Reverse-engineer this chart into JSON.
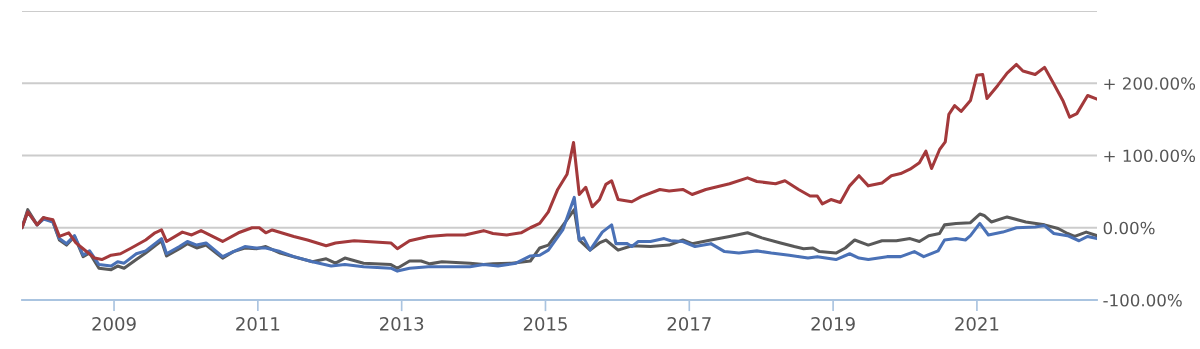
{
  "chart_data": {
    "type": "line",
    "series": [
      {
        "color": "#a3393b",
        "x": [
          2007.72,
          2007.8,
          2007.93,
          2008.02,
          2008.15,
          2008.24,
          2008.37,
          2008.47,
          2008.57,
          2008.73,
          2008.83,
          2008.96,
          2009.09,
          2009.24,
          2009.44,
          2009.57,
          2009.66,
          2009.73,
          2009.95,
          2010.08,
          2010.21,
          2010.51,
          2010.73,
          2010.92,
          2011.02,
          2011.11,
          2011.2,
          2011.5,
          2011.69,
          2011.95,
          2012.08,
          2012.34,
          2012.85,
          2012.94,
          2013.11,
          2013.37,
          2013.63,
          2013.88,
          2014.14,
          2014.27,
          2014.46,
          2014.66,
          2014.79,
          2014.92,
          2015.04,
          2015.17,
          2015.3,
          2015.39,
          2015.47,
          2015.56,
          2015.65,
          2015.75,
          2015.84,
          2015.92,
          2016.01,
          2016.2,
          2016.33,
          2016.59,
          2016.72,
          2016.91,
          2017.04,
          2017.23,
          2017.56,
          2017.81,
          2017.94,
          2018.2,
          2018.33,
          2018.52,
          2018.68,
          2018.78,
          2018.85,
          2018.97,
          2019.1,
          2019.23,
          2019.36,
          2019.49,
          2019.68,
          2019.81,
          2019.94,
          2020.07,
          2020.2,
          2020.29,
          2020.37,
          2020.48,
          2020.56,
          2020.61,
          2020.69,
          2020.78,
          2020.91,
          2021.0,
          2021.08,
          2021.14,
          2021.29,
          2021.42,
          2021.55,
          2021.64,
          2021.81,
          2021.94,
          2022.07,
          2022.2,
          2022.29,
          2022.39,
          2022.54,
          2022.67
        ],
        "values": [
          0,
          22,
          4,
          14,
          11,
          -12,
          -7,
          -21,
          -29,
          -42,
          -44,
          -38,
          -36,
          -28,
          -17,
          -7,
          -3,
          -19,
          -6,
          -10,
          -4,
          -19,
          -7,
          0,
          0,
          -7,
          -3,
          -12,
          -17,
          -25,
          -21,
          -18,
          -21,
          -29,
          -18,
          -12,
          -10,
          -10,
          -4,
          -8,
          -10,
          -7,
          0,
          6,
          22,
          53,
          74,
          118,
          46,
          56,
          29,
          39,
          60,
          65,
          39,
          36,
          43,
          53,
          51,
          53,
          46,
          53,
          61,
          69,
          64,
          61,
          65,
          53,
          44,
          44,
          33,
          39,
          35,
          58,
          72,
          58,
          62,
          72,
          75,
          81,
          90,
          106,
          82,
          108,
          119,
          157,
          169,
          161,
          176,
          211,
          212,
          179,
          197,
          214,
          226,
          217,
          212,
          222,
          199,
          175,
          153,
          158,
          183,
          178
        ]
      },
      {
        "color": "#4a71b6",
        "x": [
          2007.72,
          2007.8,
          2007.93,
          2008.02,
          2008.15,
          2008.24,
          2008.34,
          2008.45,
          2008.57,
          2008.66,
          2008.79,
          2008.96,
          2009.05,
          2009.14,
          2009.31,
          2009.44,
          2009.57,
          2009.66,
          2009.73,
          2009.91,
          2010.02,
          2010.15,
          2010.28,
          2010.51,
          2010.66,
          2010.82,
          2010.98,
          2011.11,
          2011.31,
          2011.5,
          2011.76,
          2012.02,
          2012.21,
          2012.47,
          2012.85,
          2012.94,
          2013.11,
          2013.37,
          2013.63,
          2013.95,
          2014.14,
          2014.34,
          2014.59,
          2014.79,
          2014.92,
          2015.04,
          2015.24,
          2015.4,
          2015.47,
          2015.53,
          2015.62,
          2015.79,
          2015.92,
          2015.98,
          2016.14,
          2016.2,
          2016.29,
          2016.46,
          2016.65,
          2016.74,
          2016.91,
          2017.08,
          2017.3,
          2017.49,
          2017.69,
          2017.94,
          2018.14,
          2018.39,
          2018.65,
          2018.78,
          2019.04,
          2019.23,
          2019.36,
          2019.49,
          2019.75,
          2019.94,
          2020.13,
          2020.26,
          2020.46,
          2020.55,
          2020.71,
          2020.84,
          2020.91,
          2021.04,
          2021.16,
          2021.36,
          2021.55,
          2021.81,
          2021.94,
          2022.07,
          2022.26,
          2022.42,
          2022.54,
          2022.67
        ],
        "values": [
          0,
          22,
          4,
          12,
          8,
          -15,
          -22,
          -11,
          -38,
          -32,
          -51,
          -53,
          -47,
          -49,
          -36,
          -32,
          -22,
          -15,
          -36,
          -26,
          -19,
          -24,
          -21,
          -40,
          -33,
          -26,
          -28,
          -28,
          -33,
          -40,
          -47,
          -53,
          -51,
          -54,
          -56,
          -60,
          -56,
          -54,
          -54,
          -54,
          -51,
          -53,
          -49,
          -39,
          -38,
          -31,
          -3,
          42,
          -17,
          -14,
          -31,
          -6,
          4,
          -22,
          -22,
          -26,
          -19,
          -19,
          -15,
          -18,
          -19,
          -26,
          -22,
          -33,
          -35,
          -32,
          -35,
          -38,
          -42,
          -40,
          -44,
          -36,
          -42,
          -44,
          -40,
          -40,
          -33,
          -40,
          -32,
          -17,
          -15,
          -17,
          -11,
          6,
          -10,
          -6,
          0,
          1,
          3,
          -8,
          -11,
          -18,
          -12,
          -15
        ]
      },
      {
        "color": "#595959",
        "x": [
          2007.72,
          2007.8,
          2007.93,
          2008.02,
          2008.15,
          2008.24,
          2008.34,
          2008.45,
          2008.57,
          2008.66,
          2008.79,
          2008.96,
          2009.05,
          2009.14,
          2009.31,
          2009.44,
          2009.57,
          2009.66,
          2009.73,
          2009.91,
          2010.02,
          2010.15,
          2010.28,
          2010.51,
          2010.66,
          2010.82,
          2010.98,
          2011.11,
          2011.31,
          2011.5,
          2011.76,
          2011.95,
          2012.08,
          2012.21,
          2012.47,
          2012.85,
          2012.94,
          2013.11,
          2013.27,
          2013.39,
          2013.56,
          2013.95,
          2014.14,
          2014.27,
          2014.53,
          2014.79,
          2014.92,
          2015.04,
          2015.24,
          2015.4,
          2015.47,
          2015.62,
          2015.75,
          2015.84,
          2016.01,
          2016.2,
          2016.46,
          2016.72,
          2016.91,
          2017.04,
          2017.3,
          2017.56,
          2017.81,
          2018.01,
          2018.27,
          2018.46,
          2018.59,
          2018.72,
          2018.81,
          2019.04,
          2019.17,
          2019.3,
          2019.49,
          2019.68,
          2019.88,
          2020.07,
          2020.2,
          2020.33,
          2020.48,
          2020.55,
          2020.71,
          2020.91,
          2021.04,
          2021.1,
          2021.2,
          2021.42,
          2021.68,
          2021.94,
          2022.13,
          2022.26,
          2022.36,
          2022.52,
          2022.67
        ],
        "values": [
          0,
          25,
          4,
          14,
          8,
          -17,
          -24,
          -12,
          -40,
          -35,
          -56,
          -58,
          -53,
          -56,
          -44,
          -35,
          -25,
          -18,
          -39,
          -29,
          -22,
          -28,
          -24,
          -42,
          -33,
          -28,
          -29,
          -26,
          -35,
          -40,
          -47,
          -43,
          -49,
          -42,
          -49,
          -51,
          -56,
          -46,
          -46,
          -50,
          -47,
          -49,
          -51,
          -50,
          -49,
          -46,
          -28,
          -24,
          3,
          25,
          -17,
          -31,
          -21,
          -17,
          -31,
          -25,
          -26,
          -24,
          -17,
          -22,
          -17,
          -12,
          -7,
          -14,
          -21,
          -26,
          -29,
          -28,
          -33,
          -35,
          -28,
          -17,
          -24,
          -18,
          -18,
          -15,
          -19,
          -11,
          -8,
          4,
          6,
          7,
          19,
          17,
          8,
          15,
          8,
          4,
          -1,
          -8,
          -12,
          -6,
          -11
        ]
      }
    ],
    "xlim": [
      2007.72,
      2022.67
    ],
    "xticks": [
      2009,
      2011,
      2013,
      2015,
      2017,
      2019,
      2021
    ],
    "ylim": [
      -100,
      300
    ],
    "yticks": [
      {
        "value": -100,
        "label": "-100.00%"
      },
      {
        "value": 0,
        "label": "0.00%"
      },
      {
        "value": 100,
        "label": "+ 100.00%"
      },
      {
        "value": 200,
        "label": "+ 200.00%"
      },
      {
        "value": 300,
        "label": null
      }
    ],
    "grid": "y"
  }
}
